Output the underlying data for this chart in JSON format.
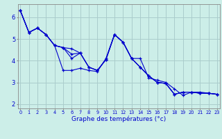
{
  "title": "Graphe des températures (°c)",
  "background_color": "#cceee8",
  "grid_color": "#aacccc",
  "line_color": "#0000cc",
  "x_hours": [
    0,
    1,
    2,
    3,
    4,
    5,
    6,
    7,
    8,
    9,
    10,
    11,
    12,
    13,
    14,
    15,
    16,
    17,
    18,
    19,
    20,
    21,
    22,
    23
  ],
  "series": [
    [
      6.3,
      5.3,
      5.5,
      5.2,
      4.7,
      3.55,
      3.55,
      3.65,
      3.55,
      3.5,
      4.1,
      5.2,
      4.85,
      4.1,
      4.1,
      3.2,
      3.1,
      3.0,
      2.7,
      2.4,
      2.55,
      2.55,
      2.5,
      2.45
    ],
    [
      6.3,
      5.3,
      5.5,
      5.2,
      4.7,
      4.6,
      4.55,
      4.35,
      3.7,
      3.55,
      4.05,
      5.2,
      4.85,
      4.1,
      3.7,
      3.3,
      3.0,
      2.95,
      2.45,
      2.55,
      2.55,
      2.5,
      2.5,
      2.45
    ],
    [
      6.3,
      5.3,
      5.5,
      5.2,
      4.7,
      4.6,
      4.3,
      4.35,
      3.7,
      3.55,
      4.05,
      5.2,
      4.85,
      4.1,
      3.7,
      3.3,
      3.0,
      2.95,
      2.45,
      2.55,
      2.55,
      2.5,
      2.5,
      2.45
    ],
    [
      6.3,
      5.3,
      5.5,
      5.2,
      4.7,
      4.6,
      4.1,
      4.35,
      3.7,
      3.55,
      4.05,
      5.2,
      4.85,
      4.1,
      3.7,
      3.3,
      3.0,
      2.95,
      2.45,
      2.55,
      2.55,
      2.5,
      2.5,
      2.45
    ]
  ],
  "ylim": [
    1.8,
    6.6
  ],
  "yticks": [
    2,
    3,
    4,
    5,
    6
  ],
  "xticks": [
    0,
    1,
    2,
    3,
    4,
    5,
    6,
    7,
    8,
    9,
    10,
    11,
    12,
    13,
    14,
    15,
    16,
    17,
    18,
    19,
    20,
    21,
    22,
    23
  ]
}
